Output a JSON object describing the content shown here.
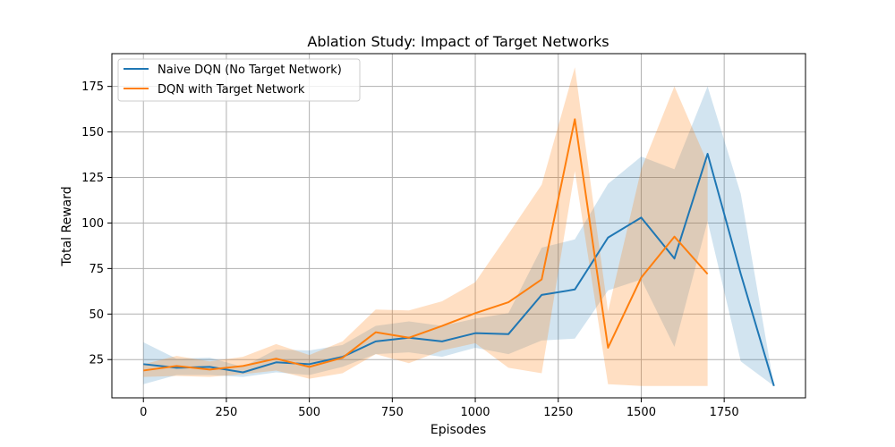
{
  "chart_data": {
    "type": "line",
    "title": "Ablation Study: Impact of Target Networks",
    "xlabel": "Episodes",
    "ylabel": "Total Reward",
    "xlim": [
      -95,
      1995
    ],
    "ylim": [
      4,
      193
    ],
    "xticks": [
      0,
      250,
      500,
      750,
      1000,
      1250,
      1500,
      1750
    ],
    "yticks": [
      25,
      50,
      75,
      100,
      125,
      150,
      175
    ],
    "grid": true,
    "legend_position": "top-left",
    "series": [
      {
        "name": "Naive DQN (No Target Network)",
        "color": "#1f77b4",
        "x": [
          0,
          100,
          200,
          300,
          400,
          500,
          600,
          700,
          800,
          900,
          1000,
          1100,
          1200,
          1300,
          1400,
          1500,
          1600,
          1700,
          1800,
          1900
        ],
        "mean": [
          22.5,
          20.5,
          21.0,
          18.0,
          23.5,
          22.5,
          26.5,
          35.0,
          37.0,
          35.0,
          39.5,
          39.0,
          60.5,
          63.5,
          92.0,
          103.0,
          80.5,
          138.0,
          72.0,
          10.5
        ],
        "lower": [
          11.5,
          16.5,
          16.5,
          15.5,
          18.0,
          16.5,
          21.0,
          28.0,
          29.0,
          26.5,
          31.5,
          28.0,
          35.5,
          36.5,
          63.0,
          69.0,
          32.0,
          101.0,
          24.0,
          10.5
        ],
        "upper": [
          34.5,
          25.5,
          26.0,
          21.0,
          30.5,
          30.0,
          33.0,
          43.5,
          46.0,
          43.5,
          47.5,
          50.5,
          86.5,
          91.0,
          121.5,
          136.5,
          129.5,
          175.0,
          116.0,
          10.5
        ]
      },
      {
        "name": "DQN with Target Network",
        "color": "#ff7f0e",
        "x": [
          0,
          100,
          200,
          300,
          400,
          500,
          600,
          700,
          800,
          900,
          1000,
          1100,
          1200,
          1300,
          1400,
          1500,
          1600,
          1700
        ],
        "mean": [
          19.0,
          21.5,
          19.5,
          21.5,
          25.5,
          21.0,
          26.0,
          40.0,
          37.0,
          43.5,
          50.5,
          56.5,
          69.0,
          157.0,
          31.5,
          70.0,
          92.5,
          72.0
        ],
        "lower": [
          15.5,
          16.0,
          15.5,
          17.0,
          19.0,
          14.5,
          17.5,
          28.0,
          23.0,
          30.0,
          34.0,
          20.5,
          17.5,
          128.5,
          11.5,
          10.5,
          10.5,
          10.5
        ],
        "upper": [
          22.5,
          27.0,
          24.0,
          26.5,
          33.5,
          27.5,
          35.0,
          52.5,
          52.0,
          57.0,
          67.5,
          94.0,
          121.0,
          185.5,
          51.5,
          129.5,
          175.0,
          133.0
        ]
      }
    ]
  }
}
